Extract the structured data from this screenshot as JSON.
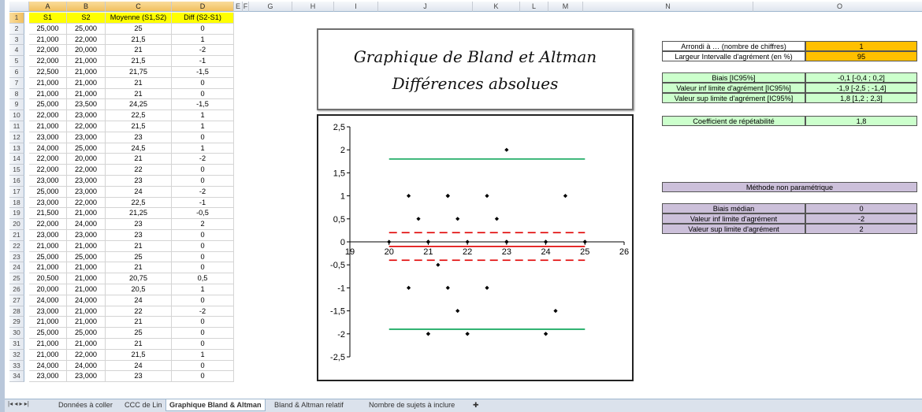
{
  "columns": {
    "letters": [
      "A",
      "B",
      "C",
      "D",
      "E",
      "F",
      "G",
      "H",
      "I",
      "J",
      "K",
      "L",
      "M",
      "N",
      "O"
    ],
    "selected": [
      "A",
      "B",
      "C",
      "D"
    ]
  },
  "rows": {
    "numbers": [
      1,
      2,
      3,
      4,
      5,
      6,
      7,
      8,
      9,
      10,
      11,
      12,
      13,
      14,
      15,
      16,
      17,
      18,
      19,
      20,
      21,
      22,
      23,
      24,
      25,
      26,
      27,
      28,
      29,
      30,
      31,
      32,
      33,
      34
    ],
    "selected_row": 1
  },
  "table": {
    "headers": [
      "S1",
      "S2",
      "Moyenne (S1,S2)",
      "Diff (S2-S1)"
    ],
    "rows": [
      [
        "25,000",
        "25,000",
        "25",
        "0"
      ],
      [
        "21,000",
        "22,000",
        "21,5",
        "1"
      ],
      [
        "22,000",
        "20,000",
        "21",
        "-2"
      ],
      [
        "22,000",
        "21,000",
        "21,5",
        "-1"
      ],
      [
        "22,500",
        "21,000",
        "21,75",
        "-1,5"
      ],
      [
        "21,000",
        "21,000",
        "21",
        "0"
      ],
      [
        "21,000",
        "21,000",
        "21",
        "0"
      ],
      [
        "25,000",
        "23,500",
        "24,25",
        "-1,5"
      ],
      [
        "22,000",
        "23,000",
        "22,5",
        "1"
      ],
      [
        "21,000",
        "22,000",
        "21,5",
        "1"
      ],
      [
        "23,000",
        "23,000",
        "23",
        "0"
      ],
      [
        "24,000",
        "25,000",
        "24,5",
        "1"
      ],
      [
        "22,000",
        "20,000",
        "21",
        "-2"
      ],
      [
        "22,000",
        "22,000",
        "22",
        "0"
      ],
      [
        "23,000",
        "23,000",
        "23",
        "0"
      ],
      [
        "25,000",
        "23,000",
        "24",
        "-2"
      ],
      [
        "23,000",
        "22,000",
        "22,5",
        "-1"
      ],
      [
        "21,500",
        "21,000",
        "21,25",
        "-0,5"
      ],
      [
        "22,000",
        "24,000",
        "23",
        "2"
      ],
      [
        "23,000",
        "23,000",
        "23",
        "0"
      ],
      [
        "21,000",
        "21,000",
        "21",
        "0"
      ],
      [
        "25,000",
        "25,000",
        "25",
        "0"
      ],
      [
        "21,000",
        "21,000",
        "21",
        "0"
      ],
      [
        "20,500",
        "21,000",
        "20,75",
        "0,5"
      ],
      [
        "20,000",
        "21,000",
        "20,5",
        "1"
      ],
      [
        "24,000",
        "24,000",
        "24",
        "0"
      ],
      [
        "23,000",
        "21,000",
        "22",
        "-2"
      ],
      [
        "21,000",
        "21,000",
        "21",
        "0"
      ],
      [
        "25,000",
        "25,000",
        "25",
        "0"
      ],
      [
        "21,000",
        "21,000",
        "21",
        "0"
      ],
      [
        "21,000",
        "22,000",
        "21,5",
        "1"
      ],
      [
        "24,000",
        "24,000",
        "24",
        "0"
      ],
      [
        "23,000",
        "23,000",
        "23",
        "0"
      ]
    ]
  },
  "chart_title": {
    "line1": "Graphique de Bland et Altman",
    "line2": "Différences absolues"
  },
  "params": {
    "arrondi_label": "Arrondi à … (nombre de chiffres)",
    "arrondi_value": "1",
    "largeur_label": "Largeur Intervalle d'agrément (en %)",
    "largeur_value": "95"
  },
  "stats": {
    "biais_label": "Biais [IC95%]",
    "biais_value": "-0,1 [-0,4 ; 0,2]",
    "inf_label": "Valeur inf limite d'agrément [IC95%]",
    "inf_value": "-1,9 [-2,5 ; -1,4]",
    "sup_label": "Valeur sup limite d'agrément [IC95%]",
    "sup_value": "1,8 [1,2 ; 2,3]"
  },
  "repeat": {
    "label": "Coefficient de répétabilité",
    "value": "1,8"
  },
  "nonparam": {
    "title": "Méthode non paramétrique",
    "median_label": "Biais médian",
    "median_value": "0",
    "inf_label": "Valeur inf limite d'agrément",
    "inf_value": "-2",
    "sup_label": "Valeur sup limite d'agrément",
    "sup_value": "2"
  },
  "sheet_tabs": [
    "Données à coller",
    "CCC de Lin",
    "Graphique Bland & Altman",
    "Bland & Altman relatif",
    "Nombre de sujets à inclure"
  ],
  "active_tab": "Graphique Bland & Altman",
  "colors": {
    "header_yellow": "#ffff00",
    "param_orange": "#ffc000",
    "stat_green": "#ccffcc",
    "nonparam_lavender": "#ccc0da",
    "limit_green": "#00a050",
    "bias_red": "#e00000"
  },
  "chart_data": {
    "type": "scatter",
    "title": "",
    "xlabel": "",
    "ylabel": "",
    "xlim": [
      19,
      26
    ],
    "ylim": [
      -2.5,
      2.5
    ],
    "x_ticks": [
      "19",
      "20",
      "21",
      "22",
      "23",
      "24",
      "25",
      "26"
    ],
    "y_ticks": [
      "2,5",
      "2",
      "1,5",
      "1",
      "0,5",
      "0",
      "-0,5",
      "-1",
      "-1,5",
      "-2",
      "-2,5"
    ],
    "points": [
      [
        25,
        0
      ],
      [
        21.5,
        1
      ],
      [
        21,
        -2
      ],
      [
        21.5,
        -1
      ],
      [
        21.75,
        -1.5
      ],
      [
        21,
        0
      ],
      [
        21,
        0
      ],
      [
        24.25,
        -1.5
      ],
      [
        22.5,
        1
      ],
      [
        21.5,
        1
      ],
      [
        23,
        0
      ],
      [
        24.5,
        1
      ],
      [
        21,
        -2
      ],
      [
        22,
        0
      ],
      [
        23,
        0
      ],
      [
        24,
        -2
      ],
      [
        22.5,
        -1
      ],
      [
        21.25,
        -0.5
      ],
      [
        23,
        2
      ],
      [
        23,
        0
      ],
      [
        21,
        0
      ],
      [
        25,
        0
      ],
      [
        21,
        0
      ],
      [
        20.75,
        0.5
      ],
      [
        20.5,
        1
      ],
      [
        24,
        0
      ],
      [
        22,
        -2
      ],
      [
        21,
        0
      ],
      [
        25,
        0
      ],
      [
        21,
        0
      ],
      [
        21.5,
        1
      ],
      [
        24,
        0
      ],
      [
        23,
        0
      ],
      [
        20,
        0
      ],
      [
        20.5,
        -1
      ],
      [
        21.75,
        0.5
      ],
      [
        22,
        -2
      ],
      [
        22.75,
        0.5
      ],
      [
        24,
        -2
      ]
    ],
    "lines": [
      {
        "name": "Biais",
        "y": -0.1,
        "style": "solid",
        "color": "#e00000"
      },
      {
        "name": "IC95% biais inf",
        "y": -0.4,
        "style": "dashed",
        "color": "#e00000"
      },
      {
        "name": "IC95% biais sup",
        "y": 0.2,
        "style": "dashed",
        "color": "#e00000"
      },
      {
        "name": "Limite inf",
        "y": -1.9,
        "style": "solid",
        "color": "#00a050"
      },
      {
        "name": "Limite sup",
        "y": 1.8,
        "style": "solid",
        "color": "#00a050"
      }
    ],
    "line_x_range": [
      20,
      25
    ]
  }
}
